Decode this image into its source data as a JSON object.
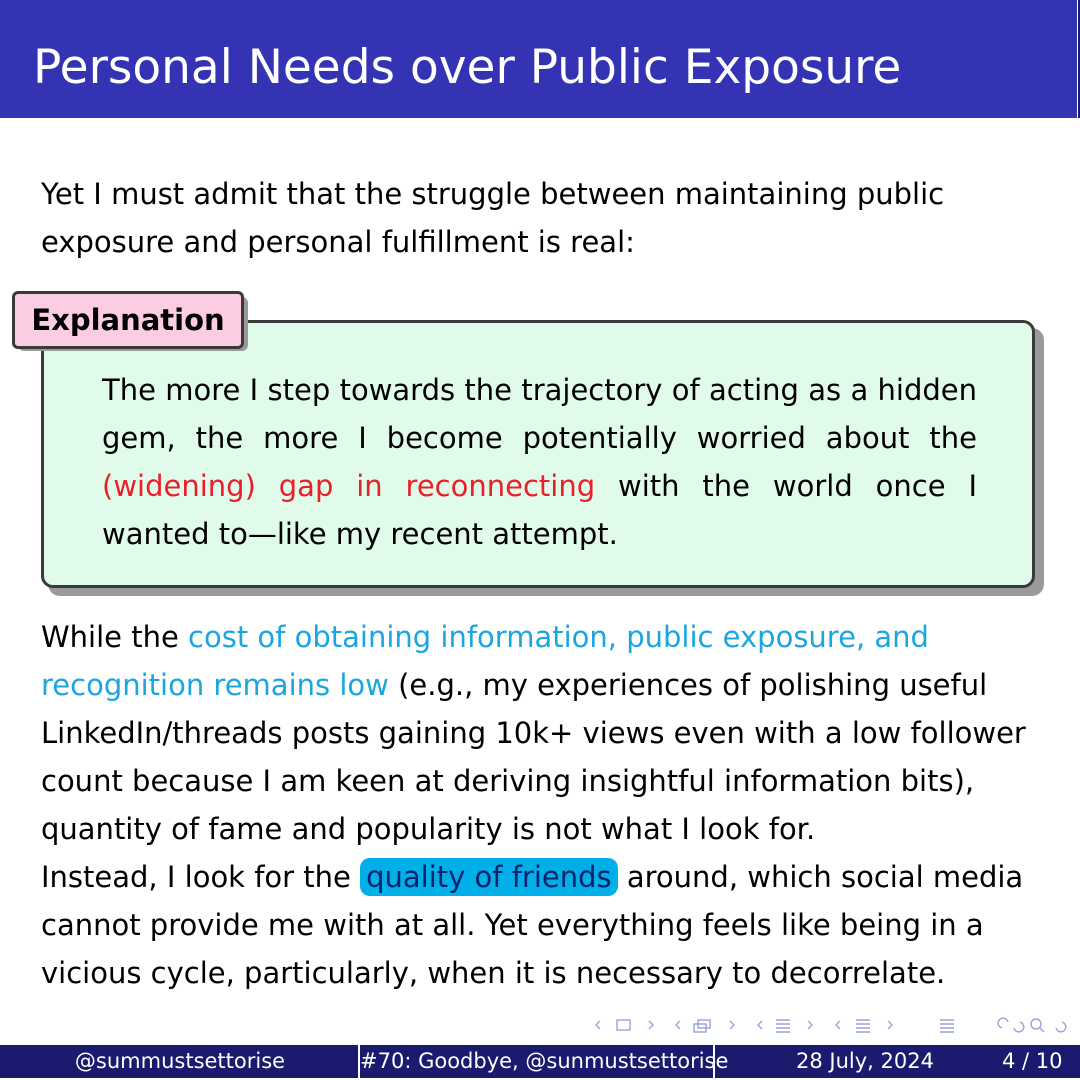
{
  "slide": {
    "title": "Personal Needs over Public Exposure",
    "intro": "Yet I must admit that the struggle between maintaining public exposure and personal fulfillment is real:"
  },
  "explanation": {
    "label": "Explanation",
    "text_before": "The more I step towards the trajectory of acting as a hidden gem, the more I become potentially worried about the ",
    "highlight": "(widening) gap in reconnecting",
    "text_after": " with the world once I wanted to—like my recent attempt."
  },
  "body": {
    "prefix": "While the ",
    "cyan_text": "cost of obtaining information, public exposure, and recognition remains low",
    "middle": " (e.g., my experiences of polishing useful LinkedIn/threads posts gaining 10k+ views even with a low follower count because I am keen at deriving insightful information bits), quantity of fame and popularity is not what I look for.",
    "line2_prefix": "Instead, I look for the",
    "highlight_box": "quality of friends",
    "line2_suffix": "around, which social media cannot provide me with at all. Yet everything feels like being in a vicious cycle, particularly, when it is necessary to decorrelate."
  },
  "nav_icons": [
    "nav-frame-icon",
    "nav-subsection-icon",
    "nav-section-icon",
    "nav-doc-icon",
    "nav-search-icon"
  ],
  "footer": {
    "author": "@summustsettorise",
    "talk": "#70: Goodbye, @sunmustsettorise",
    "date": "28 July, 2024",
    "page": "4 / 10"
  },
  "colors": {
    "header": "#3333b3",
    "footer": "#1a1a6e",
    "box_bg": "#e0fbe9",
    "label_bg": "#fccce3",
    "red": "#e8202a",
    "cyan": "#1aa7e0",
    "highlight": "#00aee8"
  }
}
